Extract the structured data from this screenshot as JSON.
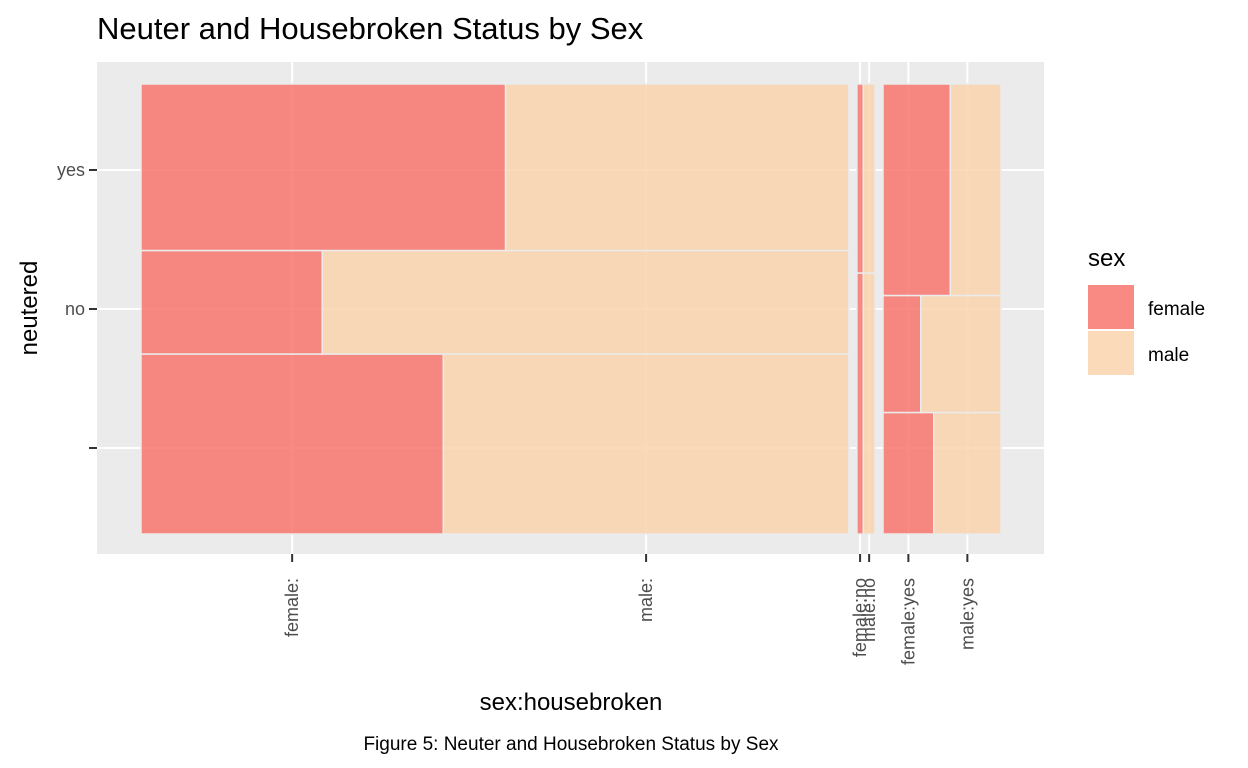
{
  "chart_data": {
    "type": "mosaic",
    "title": "Neuter and Housebroken Status by Sex",
    "xlabel": "sex:housebroken",
    "ylabel": "neutered",
    "x_tick_labels": [
      "female:",
      "male:",
      "female:no",
      "male:no",
      "female:yes",
      "male:yes"
    ],
    "y_tick_labels": [
      "",
      "no",
      "yes"
    ],
    "legend": {
      "title": "sex",
      "position": "right",
      "entries": [
        {
          "label": "female",
          "color": "#F8766D"
        },
        {
          "label": "male",
          "color": "#FAD4AE"
        }
      ]
    },
    "grid": true,
    "x_categories": [
      {
        "label": "",
        "share": 0.822
      },
      {
        "label": "no",
        "share": 0.021
      },
      {
        "label": "yes",
        "share": 0.137
      }
    ],
    "y_categories": [
      "",
      "no",
      "yes"
    ],
    "cells": [
      {
        "housebroken": "",
        "neutered": "",
        "height_share": 0.4,
        "female_share": 0.427
      },
      {
        "housebroken": "",
        "neutered": "no",
        "height_share": 0.23,
        "female_share": 0.256
      },
      {
        "housebroken": "",
        "neutered": "yes",
        "height_share": 0.37,
        "female_share": 0.515
      },
      {
        "housebroken": "no",
        "neutered": "",
        "height_share": 0.58,
        "female_share": 0.35
      },
      {
        "housebroken": "no",
        "neutered": "yes",
        "height_share": 0.42,
        "female_share": 0.35
      },
      {
        "housebroken": "yes",
        "neutered": "",
        "height_share": 0.27,
        "female_share": 0.43
      },
      {
        "housebroken": "yes",
        "neutered": "no",
        "height_share": 0.26,
        "female_share": 0.32
      },
      {
        "housebroken": "yes",
        "neutered": "yes",
        "height_share": 0.47,
        "female_share": 0.57
      }
    ]
  },
  "caption": "Figure 5: Neuter and Housebroken Status by Sex"
}
